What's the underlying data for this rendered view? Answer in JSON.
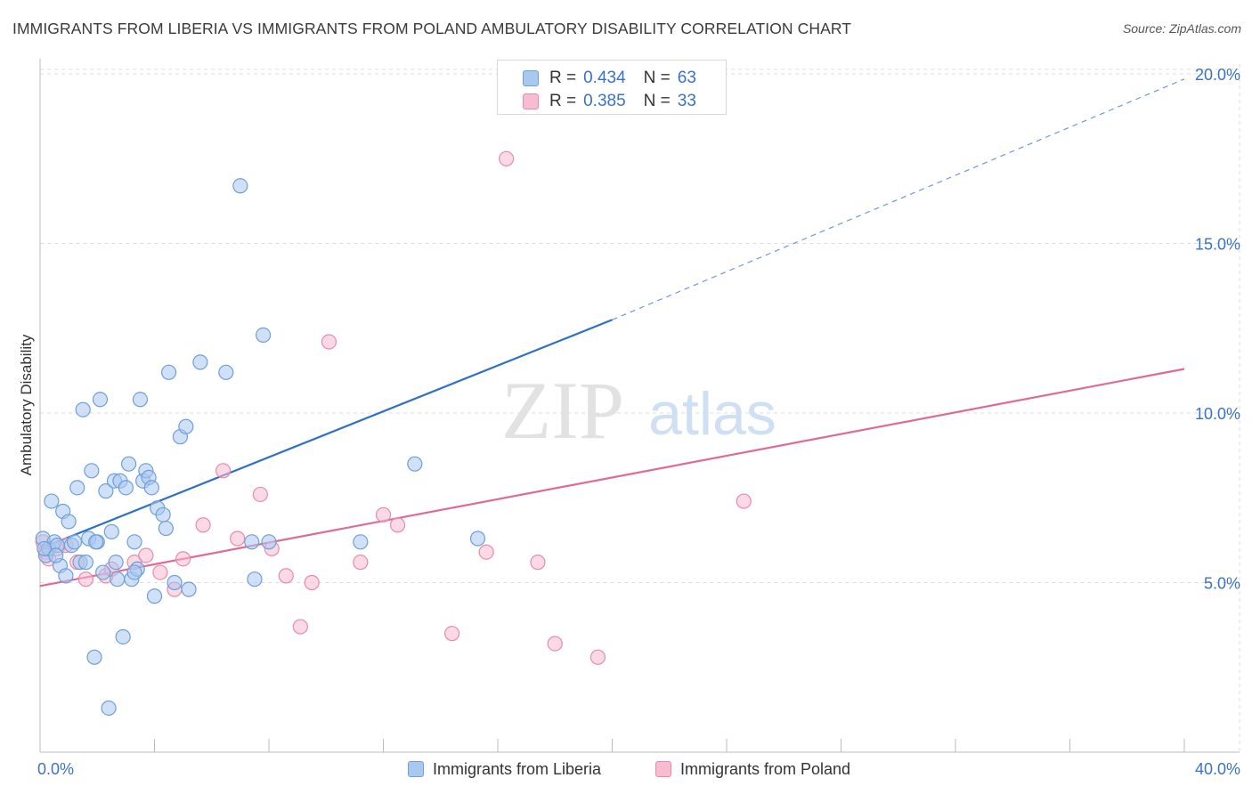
{
  "title": "IMMIGRANTS FROM LIBERIA VS IMMIGRANTS FROM POLAND AMBULATORY DISABILITY CORRELATION CHART",
  "source": "Source: ZipAtlas.com",
  "watermark": {
    "zip": "ZIP",
    "atlas": "atlas"
  },
  "legend_stats": [
    {
      "r_label": "R =",
      "r_value": "0.434",
      "n_label": "N =",
      "n_value": "63"
    },
    {
      "r_label": "R =",
      "r_value": "0.385",
      "n_label": "N =",
      "n_value": "33"
    }
  ],
  "colors": {
    "liberia_fill": "#a9c8f0",
    "liberia_stroke": "#6e9fd8",
    "liberia_line": "#2e6fcc",
    "poland_fill": "#f7bccf",
    "poland_stroke": "#e88aaa",
    "poland_line": "#e06a95",
    "tick_blue": "#3a72c8",
    "grid": "#dddddd"
  },
  "chart_data": {
    "type": "scatter",
    "title": "IMMIGRANTS FROM LIBERIA VS IMMIGRANTS FROM POLAND AMBULATORY DISABILITY CORRELATION CHART",
    "xlabel": "",
    "ylabel": "Ambulatory Disability",
    "xlim": [
      0,
      40
    ],
    "ylim": [
      0,
      20.5
    ],
    "x_tick_labels": [
      "0.0%",
      "40.0%"
    ],
    "y_ticks": [
      5,
      10,
      15,
      20
    ],
    "y_tick_labels": [
      "5.0%",
      "10.0%",
      "15.0%",
      "20.0%"
    ],
    "grid": true,
    "legend_position": "bottom-center",
    "series": [
      {
        "name": "Immigrants from Liberia",
        "x": [
          0.1,
          0.2,
          0.3,
          0.4,
          0.5,
          0.6,
          0.7,
          0.8,
          0.9,
          1.0,
          1.1,
          1.2,
          1.3,
          1.4,
          1.5,
          1.6,
          1.7,
          1.8,
          1.9,
          2.0,
          2.1,
          2.2,
          2.3,
          2.4,
          2.5,
          2.6,
          2.7,
          2.8,
          2.9,
          3.0,
          3.1,
          3.2,
          3.3,
          3.4,
          3.5,
          3.6,
          3.7,
          3.8,
          3.9,
          4.0,
          4.1,
          4.3,
          4.4,
          4.5,
          4.7,
          4.9,
          5.1,
          5.2,
          5.6,
          6.5,
          7.0,
          7.4,
          7.5,
          7.8,
          8.0,
          11.2,
          13.1,
          15.3,
          0.15,
          0.55,
          1.95,
          2.65,
          3.3
        ],
        "y": [
          6.3,
          5.8,
          6.0,
          7.4,
          6.2,
          6.1,
          5.5,
          7.1,
          5.2,
          6.8,
          6.1,
          6.2,
          7.8,
          5.6,
          10.1,
          5.6,
          6.3,
          8.3,
          2.8,
          6.2,
          10.4,
          5.3,
          7.7,
          1.3,
          6.5,
          8.0,
          5.1,
          8.0,
          3.4,
          7.8,
          8.5,
          5.1,
          6.2,
          5.4,
          10.4,
          8.0,
          8.3,
          8.1,
          7.8,
          4.6,
          7.2,
          7.0,
          6.6,
          11.2,
          5.0,
          9.3,
          9.6,
          4.8,
          11.5,
          11.2,
          16.7,
          6.2,
          5.1,
          12.3,
          6.2,
          6.2,
          8.5,
          6.3,
          6.0,
          5.8,
          6.2,
          5.6,
          5.3
        ]
      },
      {
        "name": "Immigrants from Poland",
        "x": [
          0.1,
          0.2,
          0.3,
          0.6,
          0.9,
          1.3,
          1.6,
          2.3,
          2.5,
          3.3,
          3.7,
          4.2,
          4.7,
          5.0,
          5.7,
          6.4,
          6.9,
          7.7,
          8.1,
          8.6,
          9.1,
          9.5,
          10.1,
          11.2,
          12.0,
          12.5,
          14.4,
          15.6,
          16.3,
          17.4,
          18.0,
          19.5,
          24.6
        ],
        "y": [
          6.2,
          5.9,
          5.7,
          6.0,
          6.1,
          5.6,
          5.1,
          5.2,
          5.4,
          5.6,
          5.8,
          5.3,
          4.8,
          5.7,
          6.7,
          8.3,
          6.3,
          7.6,
          6.0,
          5.2,
          3.7,
          5.0,
          12.1,
          5.6,
          7.0,
          6.7,
          3.5,
          5.9,
          17.5,
          5.6,
          3.2,
          2.8,
          7.4
        ]
      },
      {
        "name": "Liberia trend",
        "x": [
          0,
          20
        ],
        "y": [
          6.0,
          12.75
        ]
      },
      {
        "name": "Liberia trend extrapolated",
        "x": [
          20,
          40
        ],
        "y": [
          12.75,
          19.85
        ]
      },
      {
        "name": "Poland trend",
        "x": [
          0,
          40
        ],
        "y": [
          4.9,
          11.3
        ]
      }
    ]
  }
}
